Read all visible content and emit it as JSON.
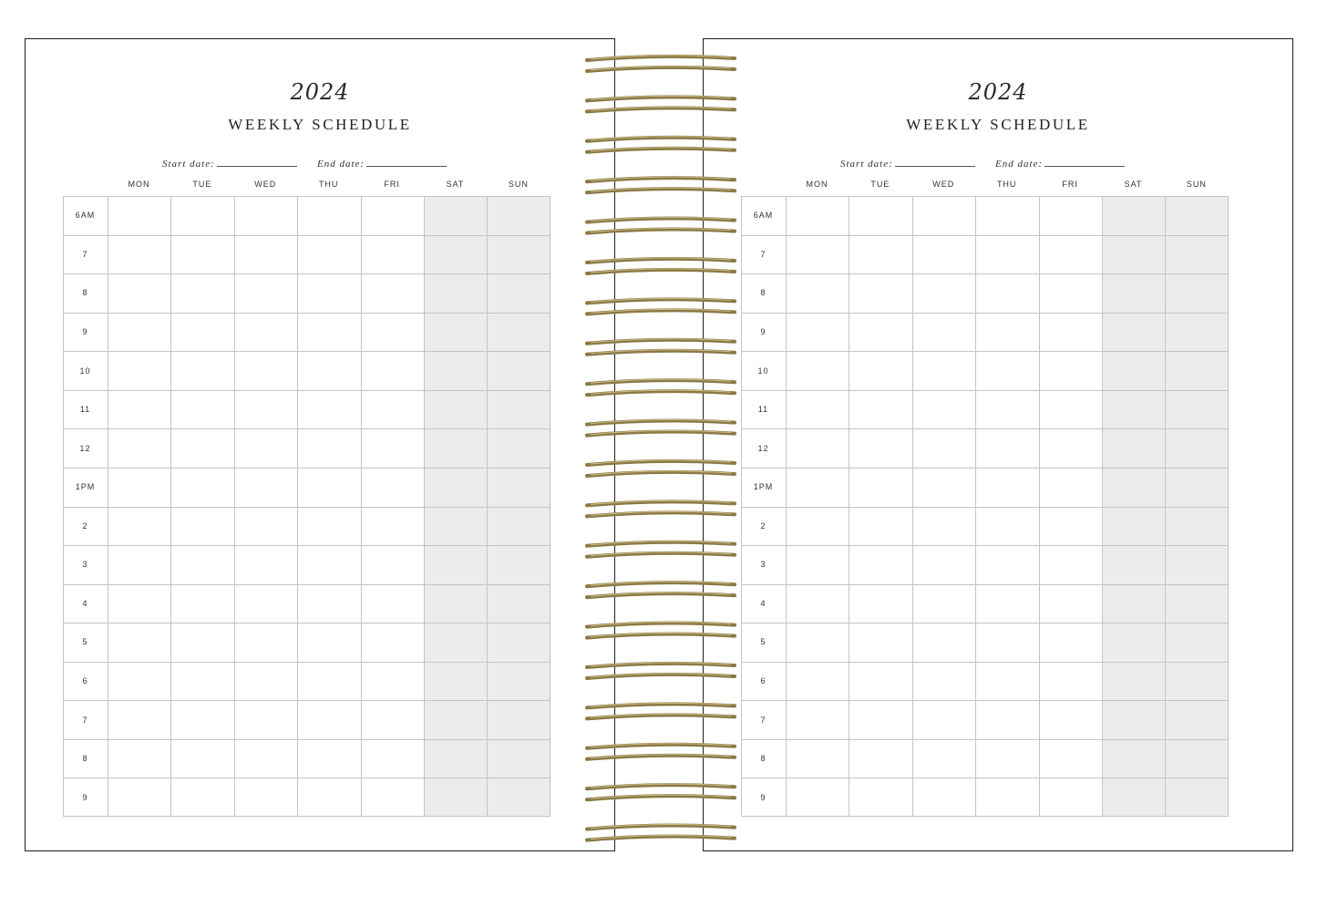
{
  "pages": [
    {
      "year": "2024",
      "title": "WEEKLY SCHEDULE",
      "start_label": "Start date:",
      "end_label": "End date:",
      "days": [
        "MON",
        "TUE",
        "WED",
        "THU",
        "FRI",
        "SAT",
        "SUN"
      ],
      "times": [
        "6AM",
        "7",
        "8",
        "9",
        "10",
        "11",
        "12",
        "1PM",
        "2",
        "3",
        "4",
        "5",
        "6",
        "7",
        "8",
        "9"
      ]
    },
    {
      "year": "2024",
      "title": "WEEKLY SCHEDULE",
      "start_label": "Start date:",
      "end_label": "End date:",
      "days": [
        "MON",
        "TUE",
        "WED",
        "THU",
        "FRI",
        "SAT",
        "SUN"
      ],
      "times": [
        "6AM",
        "7",
        "8",
        "9",
        "10",
        "11",
        "12",
        "1PM",
        "2",
        "3",
        "4",
        "5",
        "6",
        "7",
        "8",
        "9"
      ]
    }
  ],
  "colors": {
    "weekend_shade": "#ececec",
    "grid_line": "#c4c4c4",
    "coil": "#8a7a45"
  },
  "binding": {
    "coil_count": 20
  }
}
